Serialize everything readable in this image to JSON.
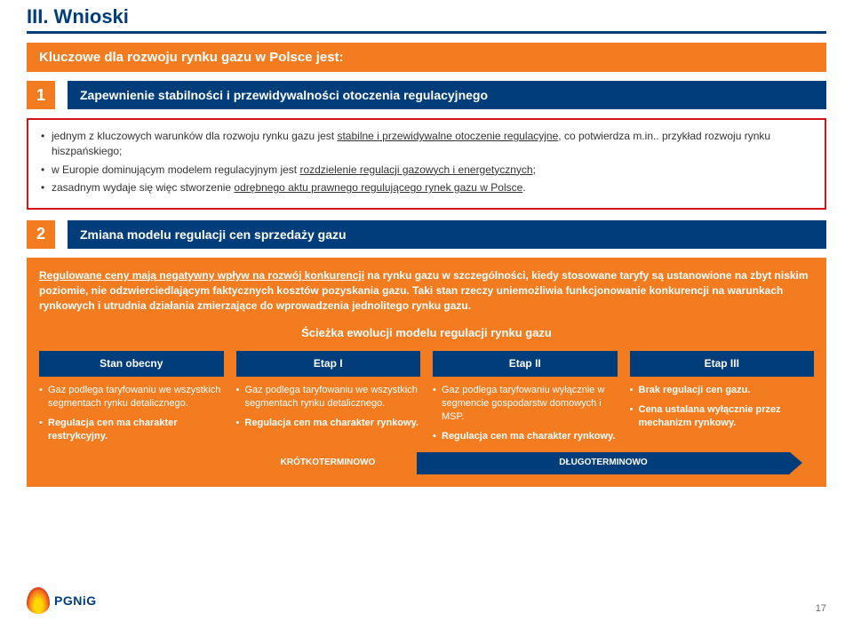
{
  "title": "III. Wnioski",
  "banner": "Kluczowe dla rozwoju rynku gazu w Polsce jest:",
  "s1": {
    "num": "1",
    "label": "Zapewnienie stabilności i przewidywalności otoczenia regulacyjnego",
    "b1a": "jednym z kluczowych warunków dla rozwoju rynku gazu jest ",
    "b1b": "stabilne i przewidywalne otoczenie regulacyjne",
    "b1c": ", co potwierdza m.in.. przykład rozwoju rynku hiszpańskiego;",
    "b2a": "w Europie dominującym modelem regulacyjnym jest ",
    "b2b": "rozdzielenie regulacji gazowych i energetycznych",
    "b2c": ";",
    "b3a": "zasadnym wydaje się więc stworzenie ",
    "b3b": "odrębnego aktu prawnego regulującego rynek gazu w Polsce",
    "b3c": "."
  },
  "s2": {
    "num": "2",
    "label": "Zmiana modelu regulacji cen sprzedaży gazu",
    "p1a": "Regulowane ceny mają negatywny wpływ na rozwój konkurencji",
    "p1b": " na rynku gazu w szczególności, kiedy stosowane taryfy są ustanowione na zbyt niskim poziomie, nie odzwierciedlającym faktycznych kosztów pozyskania gazu. Taki stan rzeczy uniemożliwia funkcjonowanie konkurencji na warunkach rynkowych i utrudnia działania zmierzające do wprowadzenia jednolitego rynku gazu.",
    "evo": "Ścieżka ewolucji modelu regulacji rynku gazu",
    "h0": "Stan obecny",
    "h1": "Etap I",
    "h2": "Etap II",
    "h3": "Etap III",
    "c0a": "Gaz podlega taryfowaniu we wszystkich segmentach rynku detalicznego.",
    "c0b": "Regulacja cen ma charakter restrykcyjny.",
    "c1a": "Gaz podlega taryfowaniu we wszystkich segmentach rynku detalicznego.",
    "c1b": "Regulacja cen ma charakter rynkowy.",
    "c2a": "Gaz podlega taryfowaniu wyłącznie w segmencie gospodarstw domowych i MSP.",
    "c2b": "Regulacja cen ma charakter rynkowy.",
    "c3a": "Brak regulacji cen gazu.",
    "c3b": "Cena ustalana wyłącznie przez mechanizm rynkowy.",
    "tl_short": "KRÓTKOTERMINOWO",
    "tl_long": "DŁUGOTERMINOWO"
  },
  "logo": "PGNiG",
  "pagenum": "17",
  "colors": {
    "blue": "#003d7a",
    "orange": "#f47c20",
    "red": "#d41313"
  }
}
